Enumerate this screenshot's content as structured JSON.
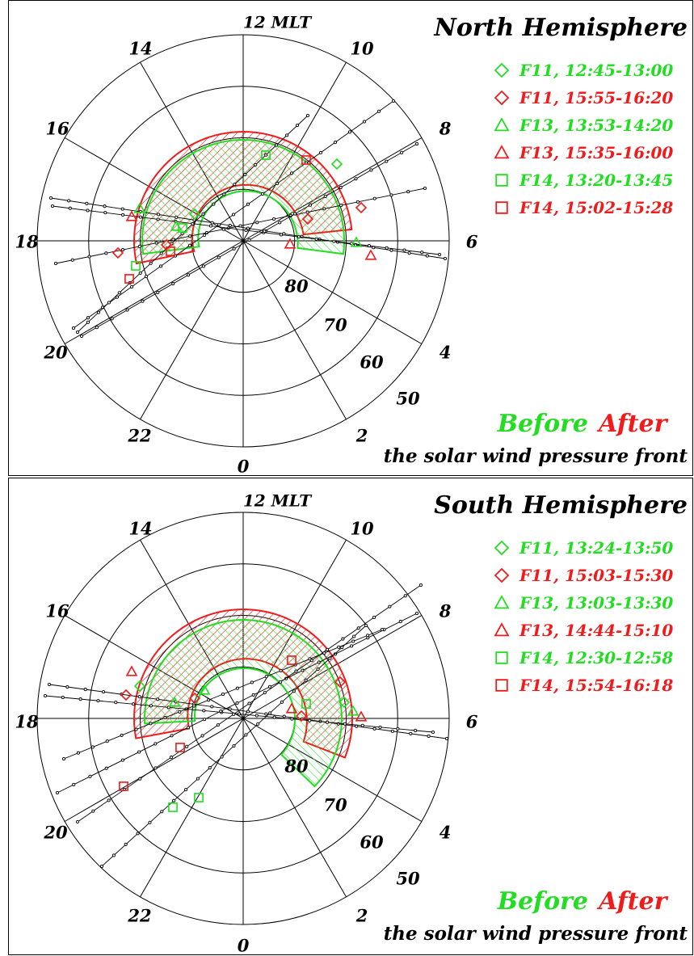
{
  "colors": {
    "before": "#22dd22",
    "after": "#ee1c1c",
    "grid": "#000000",
    "track": "#000000"
  },
  "panels": [
    {
      "title": "North Hemisphere",
      "legend": [
        {
          "marker": "diamond",
          "status": "before",
          "label": "F11, 12:45-13:00"
        },
        {
          "marker": "diamond",
          "status": "after",
          "label": "F11, 15:55-16:20"
        },
        {
          "marker": "triangle",
          "status": "before",
          "label": "F13, 13:53-14:20"
        },
        {
          "marker": "triangle",
          "status": "after",
          "label": "F13, 15:35-16:00"
        },
        {
          "marker": "square",
          "status": "before",
          "label": "F14, 13:20-13:45"
        },
        {
          "marker": "square",
          "status": "after",
          "label": "F14, 15:02-15:28"
        }
      ],
      "mlt_labels": {
        "0": "0",
        "2": "2",
        "4": "4",
        "6": "6",
        "8": "8",
        "10": "10",
        "12": "12 MLT",
        "14": "14",
        "16": "16",
        "18": "18",
        "20": "20",
        "22": "22"
      },
      "lat_labels": [
        "80",
        "70",
        "60",
        "50"
      ],
      "before_label": "Before",
      "after_label": "After",
      "footer": "the solar wind pressure front"
    },
    {
      "title": "South Hemisphere",
      "legend": [
        {
          "marker": "diamond",
          "status": "before",
          "label": "F11, 13:24-13:50"
        },
        {
          "marker": "diamond",
          "status": "after",
          "label": "F11, 15:03-15:30"
        },
        {
          "marker": "triangle",
          "status": "before",
          "label": "F13, 13:03-13:30"
        },
        {
          "marker": "triangle",
          "status": "after",
          "label": "F13, 14:44-15:10"
        },
        {
          "marker": "square",
          "status": "before",
          "label": "F14, 12:30-12:58"
        },
        {
          "marker": "square",
          "status": "after",
          "label": "F14, 15:54-16:18"
        }
      ],
      "mlt_labels": {
        "0": "0",
        "2": "2",
        "4": "4",
        "6": "6",
        "8": "8",
        "10": "10",
        "12": "12 MLT",
        "14": "14",
        "16": "16",
        "18": "18",
        "20": "20",
        "22": "22"
      },
      "lat_labels": [
        "80",
        "70",
        "60",
        "50"
      ],
      "before_label": "Before",
      "after_label": "After",
      "footer": "the solar wind pressure front"
    }
  ]
}
